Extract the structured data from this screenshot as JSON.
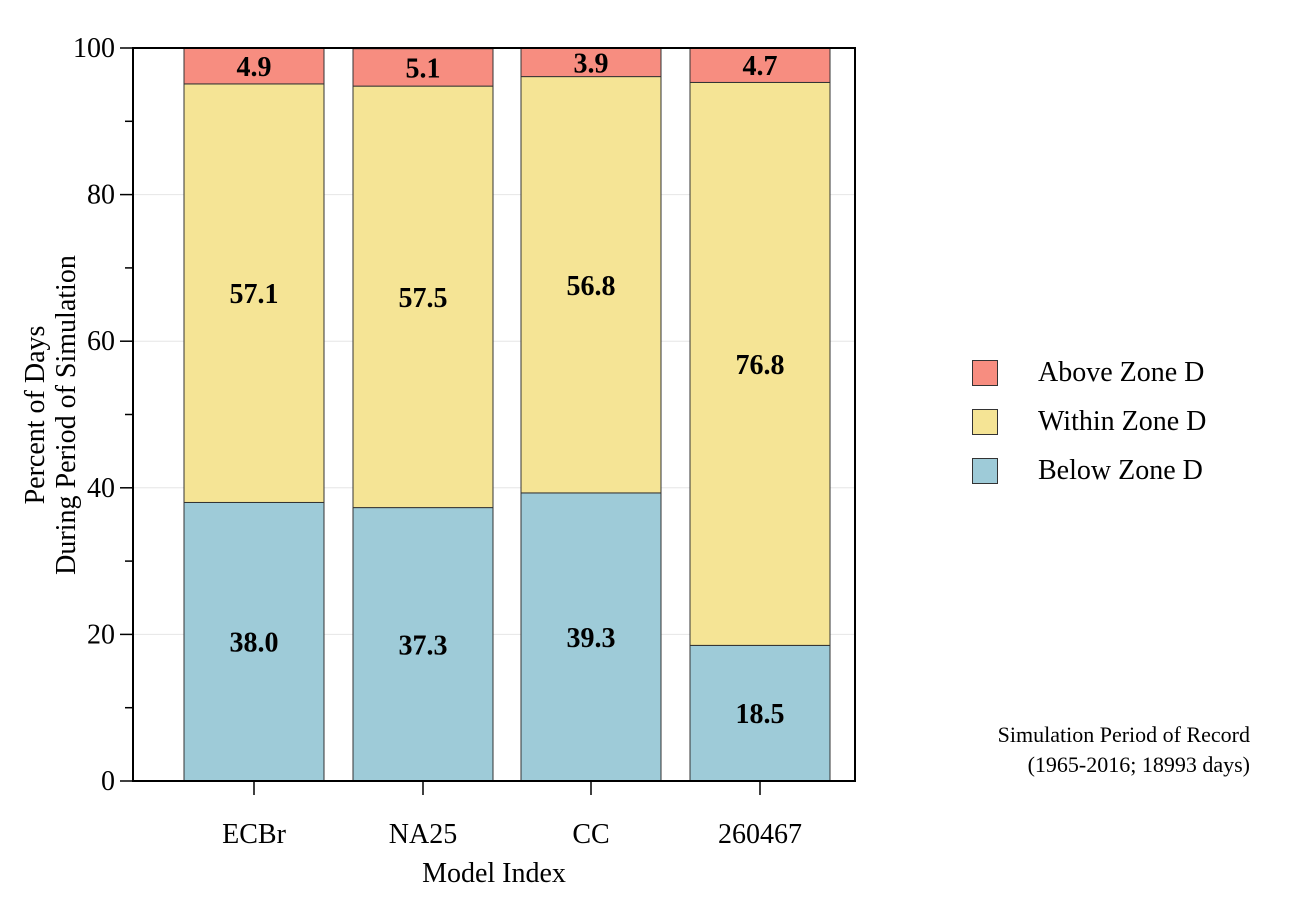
{
  "chart_data": {
    "type": "bar",
    "stacked": true,
    "title": "",
    "xlabel": "Model Index",
    "ylabel_lines": [
      "Percent of Days",
      "During Period of Simulation"
    ],
    "ylim": [
      0,
      100
    ],
    "yticks": [
      0,
      20,
      40,
      60,
      80,
      100
    ],
    "grid": true,
    "legend_position": "right",
    "categories": [
      "ECBr",
      "NA25",
      "CC",
      "260467"
    ],
    "series": [
      {
        "name": "Below Zone D",
        "color": "#9ecbd8",
        "values": [
          38.0,
          37.3,
          39.3,
          18.5
        ],
        "labels": [
          "38.0",
          "37.3",
          "39.3",
          "18.5"
        ]
      },
      {
        "name": "Within Zone D",
        "color": "#f5e495",
        "values": [
          57.1,
          57.5,
          56.8,
          76.8
        ],
        "labels": [
          "57.1",
          "57.5",
          "56.8",
          "76.8"
        ]
      },
      {
        "name": "Above Zone D",
        "color": "#f78d80",
        "values": [
          4.9,
          5.1,
          3.9,
          4.7
        ],
        "labels": [
          "4.9",
          "5.1",
          "3.9",
          "4.7"
        ]
      }
    ],
    "legend_order": [
      2,
      1,
      0
    ]
  },
  "note": {
    "line1": "Simulation Period of Record",
    "line2": "(1965-2016; 18993 days)"
  }
}
